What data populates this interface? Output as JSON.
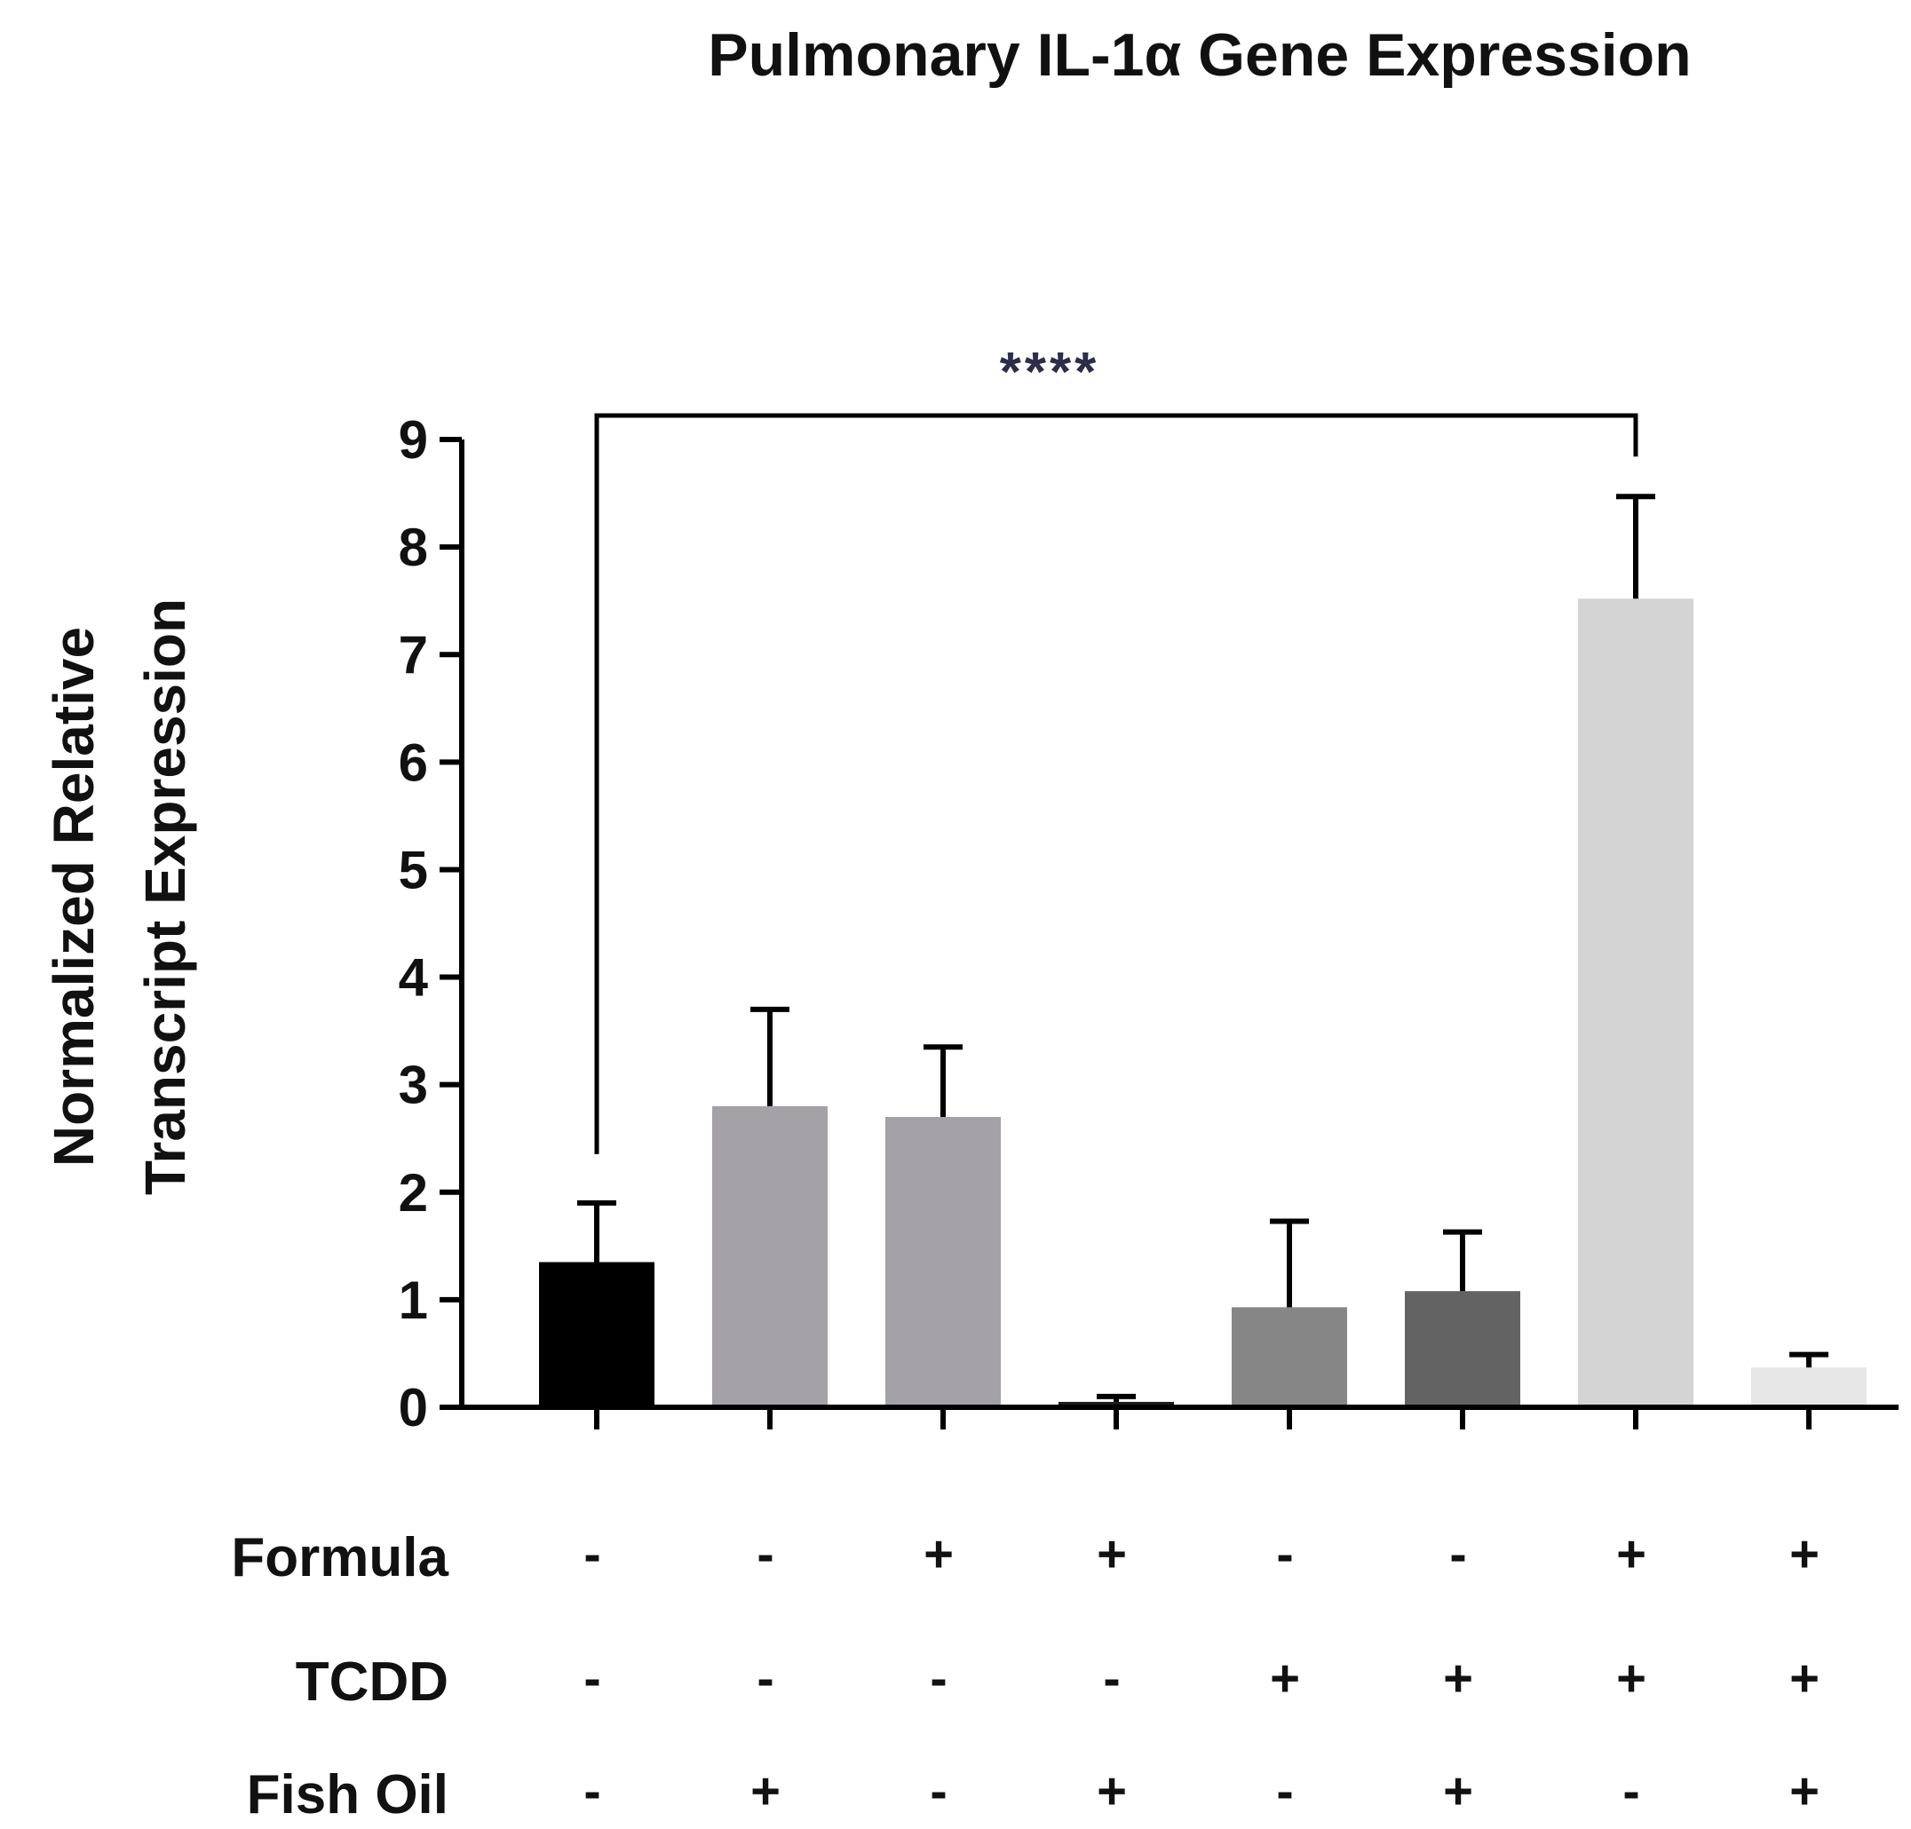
{
  "chart_data": {
    "type": "bar",
    "title": "Pulmonary IL-1α Gene Expression",
    "ylabel_lines": [
      "Normalized Relative",
      "Transcript Expression"
    ],
    "xlabel": "",
    "ylim": [
      0,
      9
    ],
    "yticks": [
      0,
      1,
      2,
      3,
      4,
      5,
      6,
      7,
      8,
      9
    ],
    "values": [
      1.35,
      2.8,
      2.7,
      0.05,
      0.93,
      1.08,
      7.52,
      0.37
    ],
    "errors": [
      0.55,
      0.9,
      0.65,
      0.05,
      0.8,
      0.55,
      0.95,
      0.12
    ],
    "colors": [
      "#000000",
      "#a4a2a7",
      "#a4a2a7",
      "#1a1a1a",
      "#868686",
      "#636363",
      "#d4d4d4",
      "#e6e6e6"
    ],
    "conditions": [
      {
        "name": "Formula",
        "signs": [
          "-",
          "-",
          "+",
          "+",
          "-",
          "-",
          "+",
          "+"
        ]
      },
      {
        "name": "TCDD",
        "signs": [
          "-",
          "-",
          "-",
          "-",
          "+",
          "+",
          "+",
          "+"
        ]
      },
      {
        "name": "Fish Oil",
        "signs": [
          "-",
          "+",
          "-",
          "+",
          "-",
          "+",
          "-",
          "+"
        ]
      }
    ],
    "significance": {
      "from_bar": 0,
      "to_bar": 6,
      "label": "****"
    }
  }
}
